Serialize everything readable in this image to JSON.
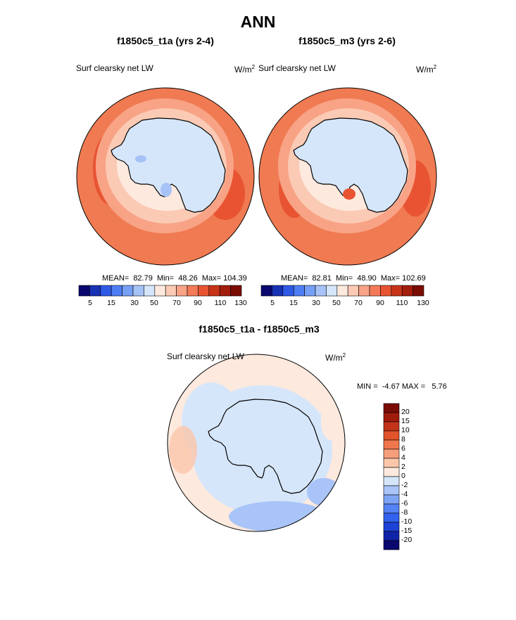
{
  "main_title": "ANN",
  "units_base": "W/m",
  "units_exp": "2",
  "panels": [
    {
      "title": "f1850c5_t1a (yrs 2-4)",
      "field": "Surf clearsky net LW",
      "stats": "MEAN=  82.79  Min=  48.26  Max= 104.39"
    },
    {
      "title": "f1850c5_m3 (yrs 2-6)",
      "field": "Surf clearsky net LW",
      "stats": "MEAN=  82.81  Min=  48.90  Max= 102.69"
    },
    {
      "title": "f1850c5_t1a - f1850c5_m3",
      "field": "Surf clearsky net LW",
      "stats": "MIN =  -4.67 MAX =   5.76"
    }
  ],
  "colors": {
    "abs_scale": [
      "#08086e",
      "#1832b4",
      "#2e5ae6",
      "#4e7ef4",
      "#76a0f6",
      "#a6c2f6",
      "#d6e6fa",
      "#fde9de",
      "#fbcab4",
      "#f8a386",
      "#f37a57",
      "#e85432",
      "#c73418",
      "#a31d0c",
      "#7a0c04"
    ],
    "diff_scale": [
      "#08086e",
      "#1024a8",
      "#1c42d6",
      "#3262ee",
      "#5582f4",
      "#7ea4f6",
      "#a8c4f8",
      "#d6e6fa",
      "#fde9de",
      "#fbc6aa",
      "#f69e7c",
      "#f0764c",
      "#e2542c",
      "#c3331a",
      "#a11b0c",
      "#7a0c04"
    ]
  },
  "chart_data": [
    {
      "type": "heatmap",
      "title": "f1850c5_t1a (yrs 2-4)",
      "field": "Surf clearsky net LW",
      "units": "W/m2",
      "projection": "south polar stereographic",
      "mean": 82.79,
      "min": 48.26,
      "max": 104.39,
      "colorbar_ticks": [
        "5",
        "15",
        "30",
        "50",
        "70",
        "90",
        "110",
        "130"
      ],
      "colorbar_levels": [
        5,
        10,
        15,
        20,
        30,
        40,
        50,
        60,
        70,
        80,
        90,
        100,
        110,
        120,
        130
      ]
    },
    {
      "type": "heatmap",
      "title": "f1850c5_m3 (yrs 2-6)",
      "field": "Surf clearsky net LW",
      "units": "W/m2",
      "projection": "south polar stereographic",
      "mean": 82.81,
      "min": 48.9,
      "max": 102.69,
      "colorbar_ticks": [
        "5",
        "15",
        "30",
        "50",
        "70",
        "90",
        "110",
        "130"
      ],
      "colorbar_levels": [
        5,
        10,
        15,
        20,
        30,
        40,
        50,
        60,
        70,
        80,
        90,
        100,
        110,
        120,
        130
      ]
    },
    {
      "type": "heatmap",
      "title": "f1850c5_t1a - f1850c5_m3",
      "field": "Surf clearsky net LW",
      "units": "W/m2",
      "projection": "south polar stereographic",
      "min": -4.67,
      "max": 5.76,
      "colorbar_ticks": [
        "20",
        "15",
        "10",
        "8",
        "6",
        "4",
        "2",
        "0",
        "-2",
        "-4",
        "-6",
        "-8",
        "-10",
        "-15",
        "-20"
      ]
    }
  ]
}
